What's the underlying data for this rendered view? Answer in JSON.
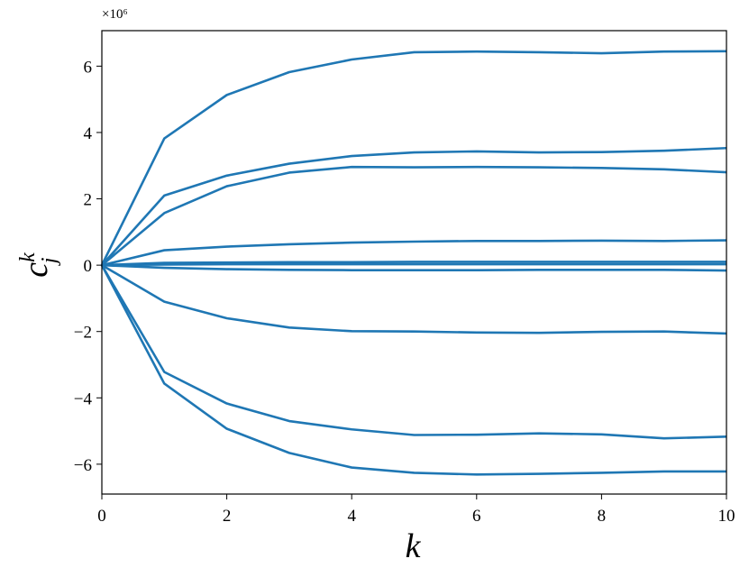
{
  "chart_data": {
    "type": "line",
    "y_offset_label": "×10⁶",
    "xlabel": "k",
    "ylabel": "c",
    "ylabel_sub": "j",
    "ylabel_sup": "k",
    "x": [
      0,
      1,
      2,
      3,
      4,
      5,
      6,
      7,
      8,
      9,
      10
    ],
    "xlim": [
      0,
      10
    ],
    "xticks": [
      0,
      2,
      4,
      6,
      8,
      10
    ],
    "ylim": [
      -6.9,
      7.07
    ],
    "yticks": [
      {
        "value": -6,
        "label": "−6"
      },
      {
        "value": -4,
        "label": "−4"
      },
      {
        "value": -2,
        "label": "−2"
      },
      0,
      2,
      4,
      6
    ],
    "grid": false,
    "series": [
      {
        "color": "#1f77b4",
        "values": [
          0,
          3.82,
          5.13,
          5.82,
          6.2,
          6.42,
          6.44,
          6.42,
          6.39,
          6.44,
          6.45
        ]
      },
      {
        "color": "#1f77b4",
        "values": [
          0,
          2.1,
          2.7,
          3.06,
          3.29,
          3.4,
          3.43,
          3.4,
          3.41,
          3.45,
          3.53
        ]
      },
      {
        "color": "#1f77b4",
        "values": [
          0,
          1.57,
          2.38,
          2.79,
          2.96,
          2.95,
          2.96,
          2.95,
          2.93,
          2.89,
          2.8
        ]
      },
      {
        "color": "#1f77b4",
        "values": [
          0,
          0.45,
          0.56,
          0.63,
          0.68,
          0.71,
          0.73,
          0.73,
          0.74,
          0.73,
          0.75
        ]
      },
      {
        "color": "#1f77b4",
        "values": [
          0,
          0.07,
          0.08,
          0.09,
          0.09,
          0.1,
          0.1,
          0.1,
          0.1,
          0.1,
          0.1
        ]
      },
      {
        "color": "#1f77b4",
        "values": [
          0,
          0.02,
          0.03,
          0.03,
          0.03,
          0.03,
          0.03,
          0.03,
          0.03,
          0.03,
          0.03
        ]
      },
      {
        "color": "#1f77b4",
        "values": [
          0,
          -0.08,
          -0.12,
          -0.14,
          -0.15,
          -0.15,
          -0.15,
          -0.14,
          -0.14,
          -0.14,
          -0.16
        ]
      },
      {
        "color": "#1f77b4",
        "values": [
          0,
          -1.1,
          -1.6,
          -1.88,
          -1.99,
          -2.0,
          -2.03,
          -2.04,
          -2.01,
          -2.0,
          -2.06
        ]
      },
      {
        "color": "#1f77b4",
        "values": [
          0,
          -3.22,
          -4.17,
          -4.7,
          -4.95,
          -5.12,
          -5.11,
          -5.07,
          -5.1,
          -5.22,
          -5.17
        ]
      },
      {
        "color": "#1f77b4",
        "values": [
          0,
          -3.57,
          -4.93,
          -5.66,
          -6.1,
          -6.26,
          -6.31,
          -6.29,
          -6.26,
          -6.22,
          -6.22
        ]
      }
    ]
  }
}
